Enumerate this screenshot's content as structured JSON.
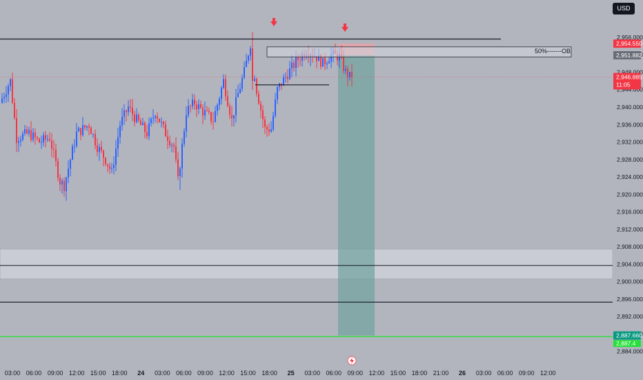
{
  "currency_button": "USD",
  "colors": {
    "background": "#b2b5be",
    "bull": "#2962ff",
    "bear": "#f23645",
    "zone": "#d1d4dc",
    "target_zone": "#6fa39c",
    "stop_zone": "#e8a1a6",
    "green_line": "#26e03a",
    "price_tag": "#f23645",
    "target_tag": "#089981",
    "level_tag": "#6a6d78"
  },
  "chart_data": {
    "type": "candlestick",
    "symbol_currency": "USD",
    "y_axis": {
      "min": 2883,
      "max": 2959,
      "ticks": [
        "2,956.000",
        "2,952.000",
        "2,948.000",
        "2,944.000",
        "2,940.000",
        "2,936.000",
        "2,932.000",
        "2,928.000",
        "2,924.000",
        "2,920.000",
        "2,916.000",
        "2,912.000",
        "2,908.000",
        "2,904.000",
        "2,900.000",
        "2,896.000",
        "2,892.000",
        "2,888.000",
        "2,884.000"
      ]
    },
    "x_axis": {
      "ticks": [
        "03:00",
        "06:00",
        "09:00",
        "12:00",
        "15:00",
        "18:00",
        "24",
        "03:00",
        "06:00",
        "09:00",
        "12:00",
        "15:00",
        "18:00",
        "25",
        "03:00",
        "06:00",
        "09:00",
        "12:00",
        "15:00",
        "18:00",
        "21:00",
        "26",
        "03:00",
        "06:00",
        "09:00",
        "12:00"
      ],
      "bold_ticks": [
        "24",
        "25",
        "26"
      ]
    },
    "price_labels": {
      "stop": "2,954.550",
      "level": "2,951.882",
      "current": "2,946.885",
      "countdown": "11:05",
      "target": "2,887.660",
      "green_line": "2,887.4"
    },
    "annotations": {
      "ob_label": "50%-------OB",
      "arrows": 2
    },
    "levels": {
      "resistance_line": 2955.6,
      "ob_zone_top": 2953.8,
      "ob_zone_bottom": 2951.5,
      "swing_line": 2945.1,
      "demand_zone_top": 2907.5,
      "demand_zone_bottom": 2900.6,
      "demand_mid_line": 2903.7,
      "support_line": 2895.3,
      "green_line": 2887.4,
      "current_price": 2946.885
    },
    "position": {
      "type": "short",
      "entry": 2951.882,
      "stop": 2954.55,
      "target": 2887.66
    },
    "candles": {
      "count": 170,
      "open": 2941,
      "anchors": [
        [
          0,
          2941
        ],
        [
          5,
          2946
        ],
        [
          8,
          2933
        ],
        [
          14,
          2934
        ],
        [
          19,
          2932
        ],
        [
          24,
          2933
        ],
        [
          29,
          2923
        ],
        [
          31,
          2922
        ],
        [
          37,
          2934
        ],
        [
          43,
          2936
        ],
        [
          47,
          2931
        ],
        [
          51,
          2928
        ],
        [
          54,
          2925
        ],
        [
          58,
          2936
        ],
        [
          62,
          2940
        ],
        [
          66,
          2937
        ],
        [
          71,
          2934
        ],
        [
          75,
          2939
        ],
        [
          80,
          2934
        ],
        [
          84,
          2931
        ],
        [
          86,
          2923
        ],
        [
          90,
          2939
        ],
        [
          94,
          2941
        ],
        [
          98,
          2939
        ],
        [
          103,
          2937
        ],
        [
          108,
          2946
        ],
        [
          112,
          2937
        ],
        [
          115,
          2943
        ],
        [
          118,
          2948
        ],
        [
          121,
          2954.6
        ],
        [
          124,
          2944
        ],
        [
          128,
          2935
        ],
        [
          131,
          2935
        ],
        [
          134,
          2944
        ],
        [
          138,
          2947
        ],
        [
          144,
          2951
        ],
        [
          148,
          2953
        ],
        [
          152,
          2952
        ],
        [
          156,
          2950
        ],
        [
          160,
          2952
        ],
        [
          164,
          2951.5
        ],
        [
          167,
          2948
        ],
        [
          169,
          2946.885
        ]
      ]
    }
  }
}
